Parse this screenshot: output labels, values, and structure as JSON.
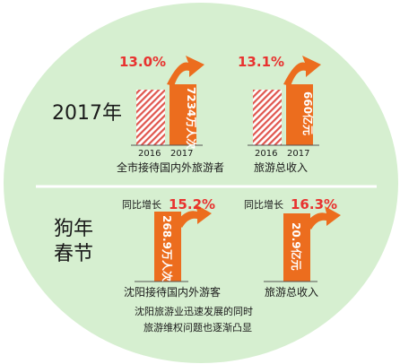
{
  "colors": {
    "background_circle": "#d6efd0",
    "bar_orange": "#ec6d1e",
    "bar_hatch": "#e0564e",
    "growth_red": "#e8322f",
    "divider": "#ffffff"
  },
  "chart_data": [
    {
      "type": "bar",
      "section": "2017年",
      "categories": [
        "2016",
        "2017"
      ],
      "growth_label": "13.0%",
      "bar_2017_label": "7234万人次",
      "caption": "全市接待国内外旅游者",
      "relative_values": [
        1.0,
        1.13
      ]
    },
    {
      "type": "bar",
      "section": "2017年",
      "categories": [
        "2016",
        "2017"
      ],
      "growth_label": "13.1%",
      "bar_2017_label": "660亿元",
      "caption": "旅游总收入",
      "relative_values": [
        1.0,
        1.131
      ]
    },
    {
      "type": "bar",
      "section": "狗年春节",
      "growth_prefix": "同比增长",
      "growth_label": "15.2%",
      "bar_label": "268.9万人次",
      "caption": "沈阳接待国内外游客"
    },
    {
      "type": "bar",
      "section": "狗年春节",
      "growth_prefix": "同比增长",
      "growth_label": "16.3%",
      "bar_label": "20.9亿元",
      "caption": "旅游总收入"
    }
  ],
  "labels": {
    "section1": "2017年",
    "section2_line1": "狗年",
    "section2_line2": "春节",
    "footer_line1": "沈阳旅游业迅速发展的同时",
    "footer_line2": "旅游维权问题也逐渐凸显"
  }
}
